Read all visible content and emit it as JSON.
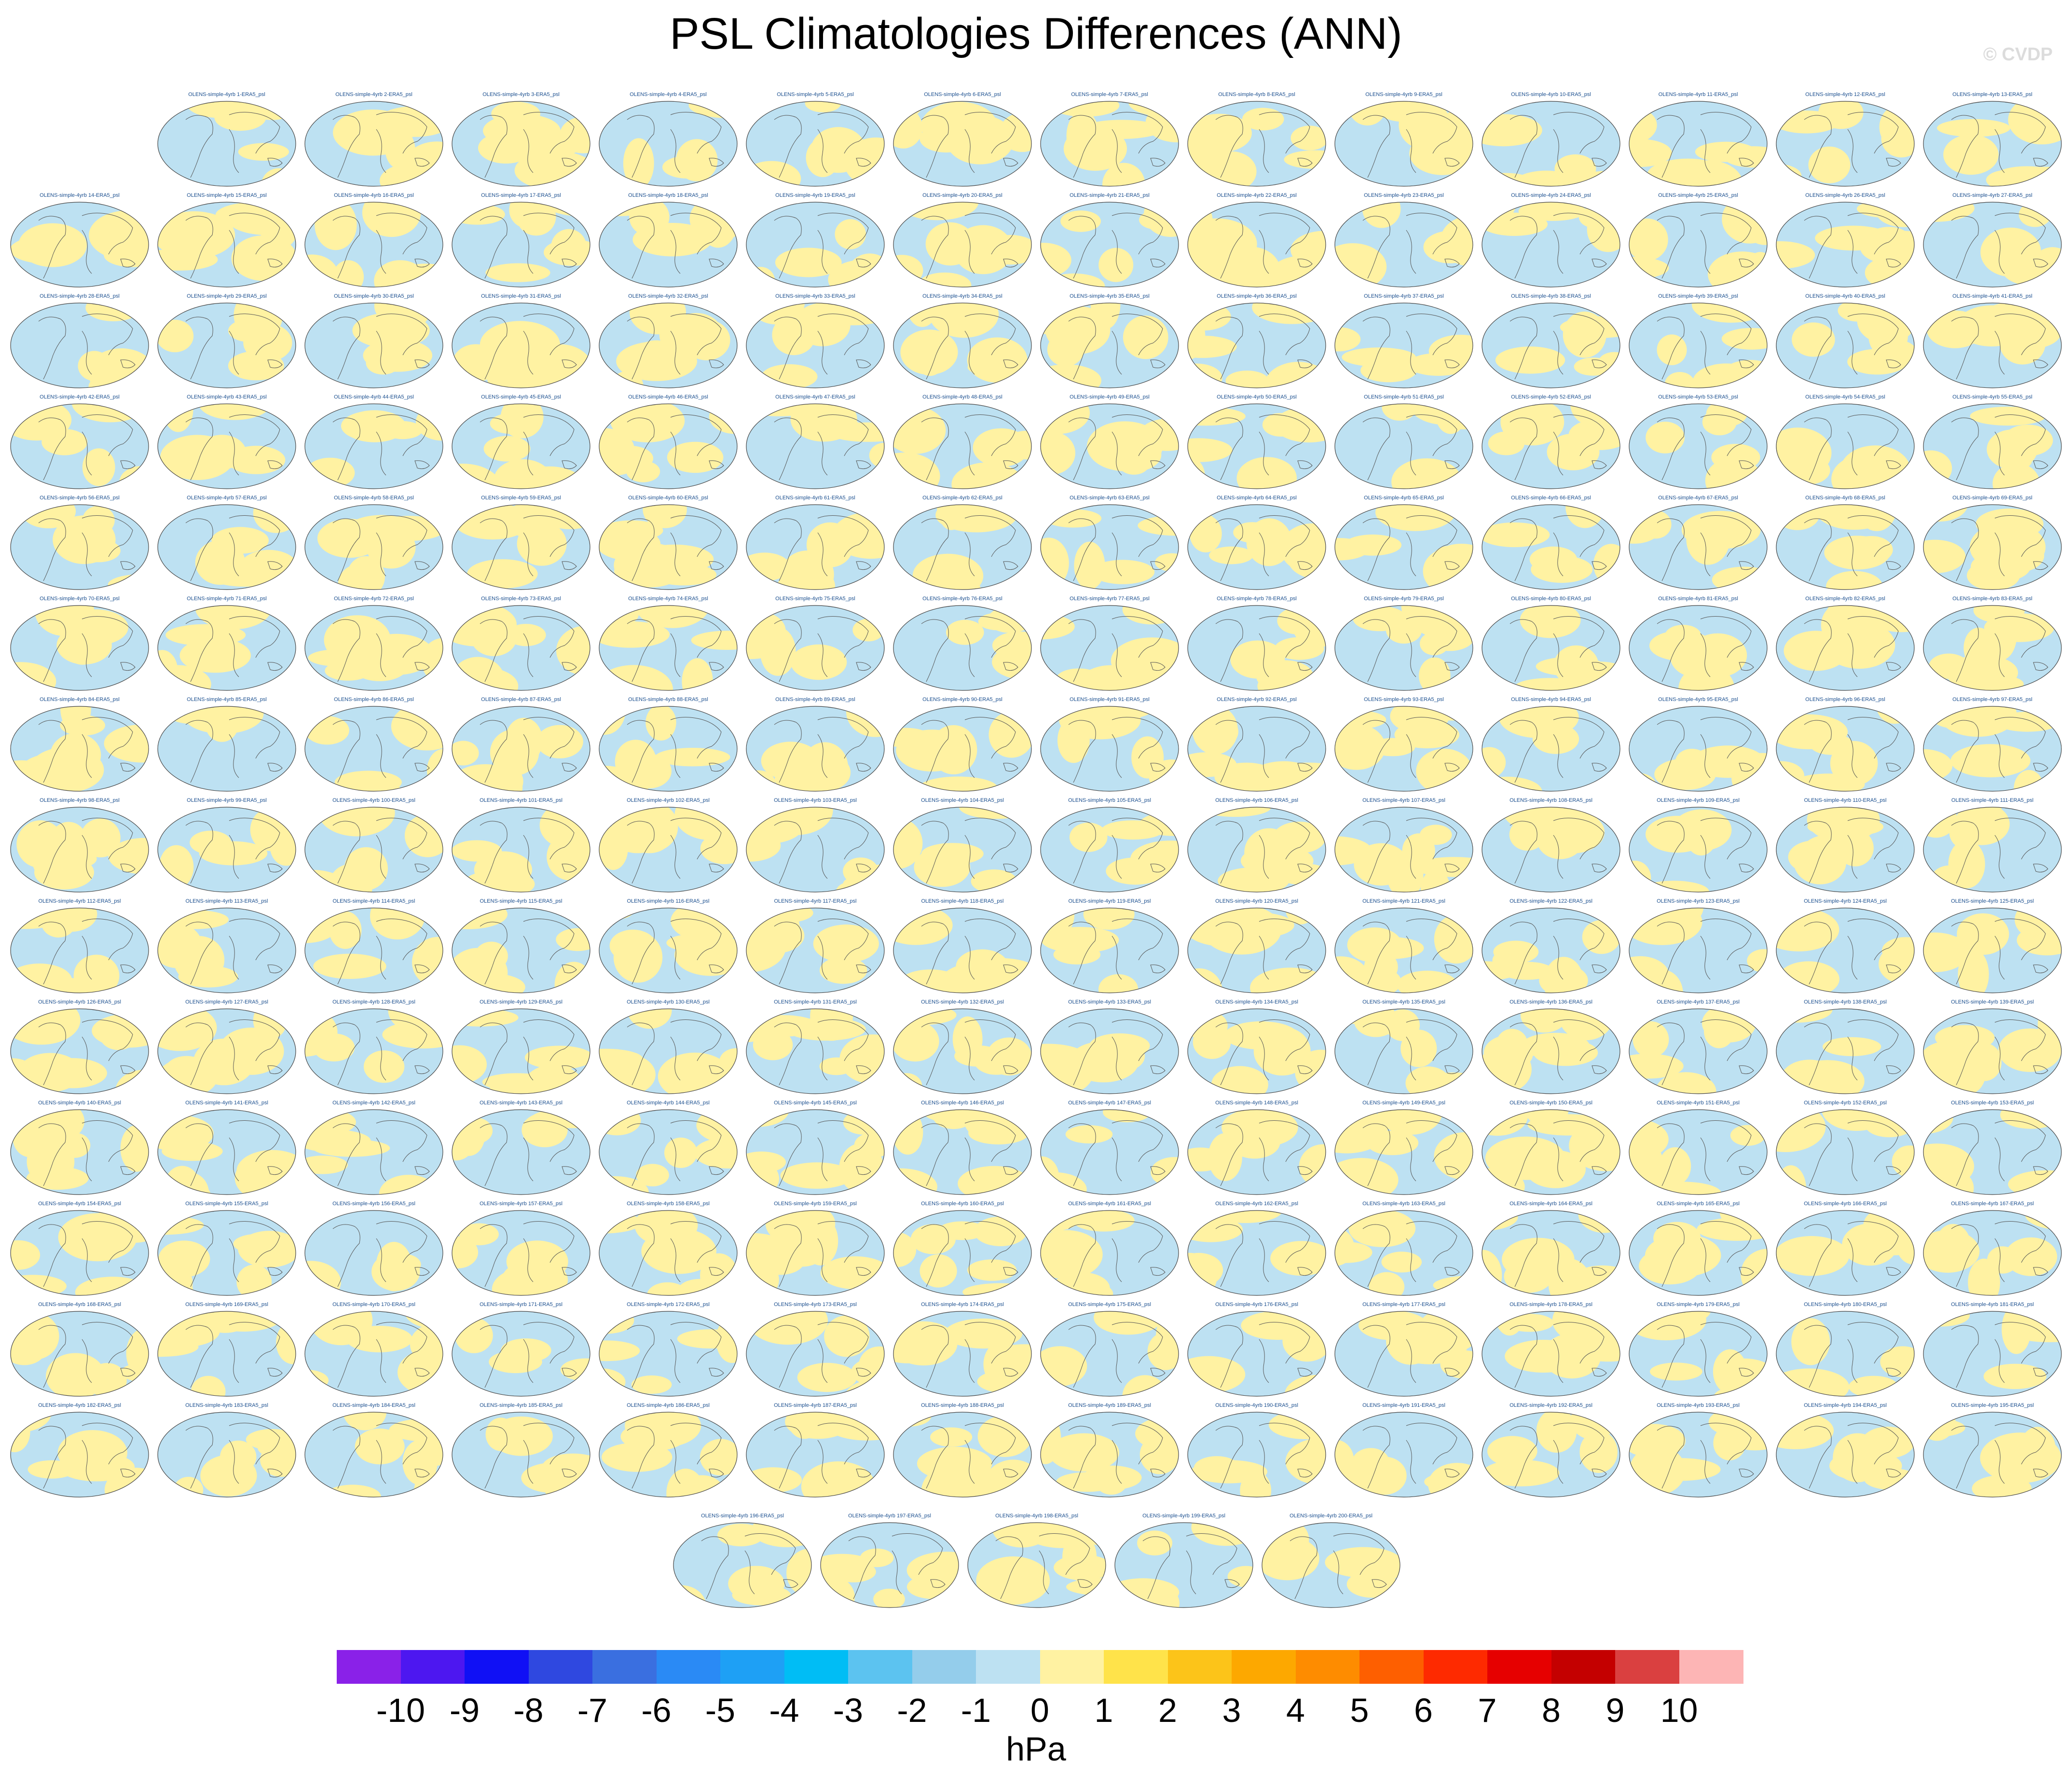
{
  "figure": {
    "title": "PSL Climatologies Differences (ANN)",
    "watermark": "© CVDP"
  },
  "panels": {
    "title_prefix": "OLENS-simple-4yrb ",
    "title_suffix": "-ERA5_psl",
    "count": 200,
    "row_sizes": [
      13,
      14,
      14,
      14,
      14,
      14,
      14,
      14,
      14,
      14,
      14,
      14,
      14,
      14,
      5
    ]
  },
  "chart_data": {
    "type": "heatmap",
    "title": "PSL Climatologies Differences (ANN)",
    "panel_count": 200,
    "panel_titles_pattern": "OLENS-simple-4yrb {n}-ERA5_psl",
    "map_projection": "global map (ellipse)",
    "colorbar": {
      "units": "hPa",
      "labels": [
        "-10",
        "-9",
        "-8",
        "-7",
        "-6",
        "-5",
        "-4",
        "-3",
        "-2",
        "-1",
        "0",
        "1",
        "2",
        "3",
        "4",
        "5",
        "6",
        "7",
        "8",
        "9",
        "10"
      ],
      "colors": [
        "#8a21e8",
        "#4d17f0",
        "#1010f5",
        "#2f48e0",
        "#3a6fe0",
        "#2a8af5",
        "#1ea0f5",
        "#00bdf5",
        "#5cc3f0",
        "#94cdeb",
        "#bde1f2",
        "#fff2a2",
        "#ffe34a",
        "#fcc419",
        "#fda800",
        "#fe8c00",
        "#fe5f00",
        "#fe2a00",
        "#e60000",
        "#c40000",
        "#da4040",
        "#fdb5b5"
      ]
    },
    "dominant_colors": {
      "positive_0_to_1": "#fff2a2",
      "negative_-1_to_0": "#bde1f2"
    }
  }
}
